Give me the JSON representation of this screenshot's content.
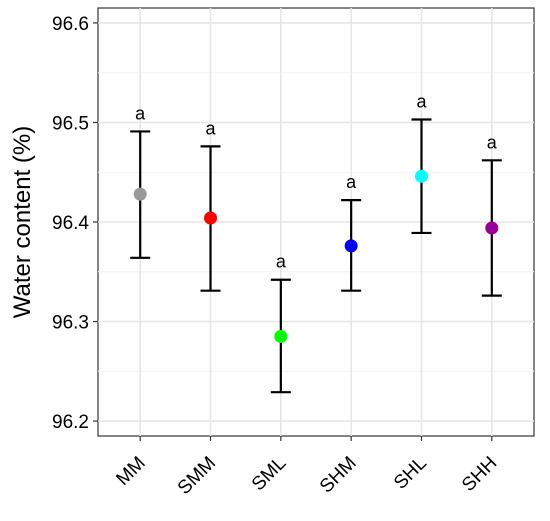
{
  "chart_data": {
    "type": "scatter",
    "ylabel": "Water content (%)",
    "xlabel": "",
    "ylim": [
      96.185,
      96.615
    ],
    "yticks": [
      "96.2",
      "96.3",
      "96.4",
      "96.5",
      "96.6"
    ],
    "grid": true,
    "categories": [
      "MM",
      "SMM",
      "SML",
      "SHM",
      "SHL",
      "SHH"
    ],
    "values": [
      96.428,
      96.404,
      96.285,
      96.376,
      96.446,
      96.394
    ],
    "error_low": [
      96.364,
      96.331,
      96.229,
      96.331,
      96.389,
      96.326
    ],
    "error_high": [
      96.491,
      96.476,
      96.342,
      96.422,
      96.503,
      96.462
    ],
    "significance_labels": [
      "a",
      "a",
      "a",
      "a",
      "a",
      "a"
    ],
    "colors": [
      "#999999",
      "#ff0000",
      "#00ff00",
      "#0000ff",
      "#00ffff",
      "#990099"
    ]
  }
}
